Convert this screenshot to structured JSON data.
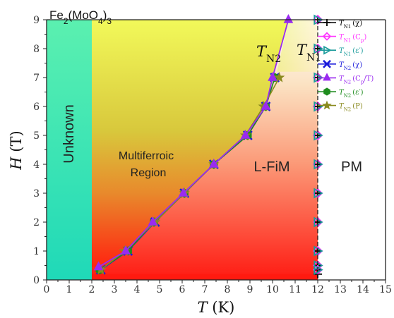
{
  "chart_data": {
    "type": "scatter",
    "title": "Fe2(MoO4)3",
    "title_parts": {
      "a": "Fe",
      "b": "2",
      "c": "(MoO",
      "d": "4",
      "e": ")",
      "f": "3"
    },
    "xlabel": "T (K)",
    "ylabel": "H (T)",
    "xlabel_parts": {
      "var": "T",
      "unit": " (K)"
    },
    "ylabel_parts": {
      "var": "H",
      "unit": " (T)"
    },
    "xlim": [
      0,
      15
    ],
    "ylim": [
      0,
      9
    ],
    "x_ticks": [
      "0",
      "1",
      "2",
      "3",
      "4",
      "5",
      "6",
      "7",
      "8",
      "9",
      "10",
      "11",
      "12",
      "13",
      "14",
      "15"
    ],
    "y_ticks": [
      "0",
      "1",
      "2",
      "3",
      "4",
      "5",
      "6",
      "7",
      "8",
      "9"
    ],
    "grid": false,
    "legend_position": "top-right",
    "regions": [
      {
        "key": "unknown",
        "label": "Unknown",
        "x_range": [
          0,
          2
        ],
        "color": "#1de9b6"
      },
      {
        "key": "multiferroic",
        "label_line1": "Multiferroic",
        "label_line2": "Region",
        "color": "#e8ee5c"
      },
      {
        "key": "lfim",
        "label": "L-FiM",
        "color": "#ff2a1a"
      },
      {
        "key": "pm",
        "label": "PM",
        "x_range": [
          12,
          15
        ],
        "color": "#ffffff"
      }
    ],
    "curve_labels": {
      "tn2": {
        "main": "T",
        "sub": "N2"
      },
      "tn1": {
        "main": "T",
        "sub": "N1"
      }
    },
    "series": [
      {
        "name": "T_N1 (χ)",
        "legend": {
          "main": "T",
          "sub": "N1",
          "paren": "(χ)"
        },
        "color": "#000000",
        "marker": "plus",
        "x": [
          12,
          12,
          12,
          12,
          12,
          12,
          12,
          12,
          12,
          12,
          12,
          12
        ],
        "y": [
          0.2,
          0.35,
          0.5,
          1,
          2,
          3,
          4,
          5,
          6,
          7,
          8,
          9
        ]
      },
      {
        "name": "T_N1 (Cp)",
        "legend": {
          "main": "T",
          "sub": "N1",
          "paren": "(C",
          "psub": "p",
          "tail": ")"
        },
        "color": "#ff33ff",
        "marker": "diamond",
        "x": [
          12,
          12,
          12,
          12,
          12,
          12,
          12,
          12,
          12,
          12,
          12
        ],
        "y": [
          0.35,
          0.5,
          1,
          2,
          3,
          4,
          5,
          6,
          7,
          8,
          9
        ]
      },
      {
        "name": "T_N1 (ε')",
        "legend": {
          "main": "T",
          "sub": "N1",
          "paren": "(ε′)"
        },
        "color": "#1a9b9b",
        "marker": "tri-right",
        "x": [
          12,
          12,
          12,
          12,
          12,
          12,
          12,
          12,
          12,
          12,
          12
        ],
        "y": [
          0.35,
          0.5,
          1,
          2,
          3,
          4,
          5,
          6,
          7,
          8,
          9
        ]
      },
      {
        "name": "T_N2 (χ)",
        "legend": {
          "main": "T",
          "sub": "N2",
          "paren": "(χ)"
        },
        "color": "#1a1adb",
        "marker": "x",
        "x": [
          2.4,
          3.6,
          4.8,
          6.1,
          7.4,
          8.9,
          9.7,
          10.1
        ],
        "y": [
          0.35,
          1,
          2,
          3,
          4,
          5,
          6,
          7
        ]
      },
      {
        "name": "T_N2 (Cp/T)",
        "legend": {
          "main": "T",
          "sub": "N2",
          "paren": "(C",
          "psub": "p",
          "tail": "/T)"
        },
        "color": "#9a2bf0",
        "marker": "triangle",
        "x": [
          2.3,
          3.5,
          4.7,
          6.05,
          7.4,
          8.8,
          9.7,
          10.0,
          10.7
        ],
        "y": [
          0.45,
          1,
          2,
          3,
          4,
          5,
          6,
          7,
          9
        ]
      },
      {
        "name": "T_N2 (ε')",
        "legend": {
          "main": "T",
          "sub": "N2",
          "paren": "(ε′)"
        },
        "color": "#1e8c1e",
        "marker": "hexagon",
        "x": [
          2.35,
          3.6,
          4.75,
          6.1,
          7.4,
          8.9,
          9.7,
          10.1
        ],
        "y": [
          0.35,
          1,
          2,
          3,
          4,
          5,
          6,
          7
        ]
      },
      {
        "name": "T_N2 (P)",
        "legend": {
          "main": "T",
          "sub": "N2",
          "paren": "(P)"
        },
        "color": "#8a8a1e",
        "marker": "star",
        "x": [
          2.4,
          3.45,
          4.8,
          6.1,
          7.4,
          8.8,
          9.6,
          10.3
        ],
        "y": [
          0.35,
          1,
          2,
          3,
          4,
          5,
          6,
          7
        ]
      }
    ]
  }
}
